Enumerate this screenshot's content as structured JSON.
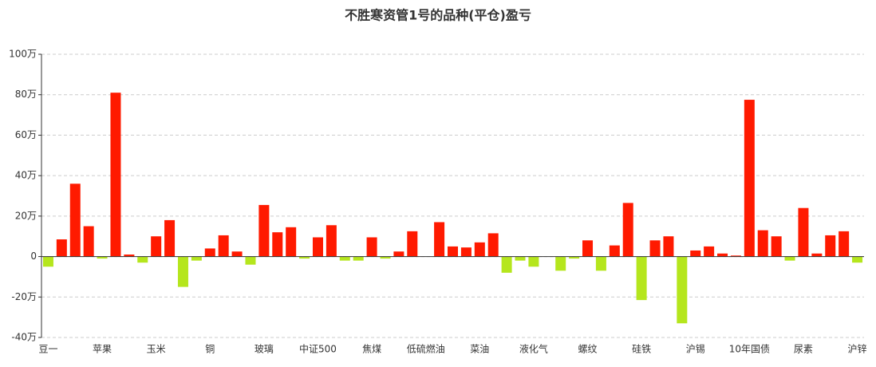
{
  "chart_data": {
    "type": "bar",
    "title": "不胜寒资管1号的品种(平仓)盈亏",
    "categories": [
      "豆一",
      null,
      null,
      null,
      "苹果",
      null,
      null,
      null,
      "玉米",
      null,
      null,
      null,
      "铜",
      null,
      null,
      null,
      "玻璃",
      null,
      null,
      null,
      "中证500",
      null,
      null,
      null,
      "焦煤",
      null,
      null,
      null,
      "低硫燃油",
      null,
      null,
      null,
      "菜油",
      null,
      null,
      null,
      "液化气",
      null,
      null,
      null,
      "螺纹",
      null,
      null,
      null,
      "硅铁",
      null,
      null,
      null,
      "沪锡",
      null,
      null,
      null,
      "10年国债",
      null,
      null,
      null,
      "尿素",
      null,
      null,
      null,
      "沪锌"
    ],
    "values": [
      -5,
      8.5,
      36,
      15,
      -1,
      81,
      1,
      -3,
      10,
      18,
      -15,
      -2,
      4,
      10.5,
      2.5,
      -4,
      25.5,
      12,
      14.5,
      -1,
      9.5,
      15.5,
      -2,
      -2,
      9.5,
      -1,
      2.5,
      12.5,
      0,
      17,
      5,
      4.5,
      7,
      11.5,
      -8,
      -2,
      -5,
      0,
      -7,
      -1,
      8,
      -7,
      5.5,
      26.5,
      -21.5,
      8,
      10,
      -33,
      3,
      5,
      1.5,
      0.5,
      77.5,
      13,
      10,
      -2,
      24,
      1.5,
      10.5,
      12.5,
      -3
    ],
    "positive_color": "#ff1a00",
    "negative_color": "#b5e61d",
    "ylim": [
      -40,
      100
    ],
    "yticks": [
      {
        "value": -40,
        "label": "-40万"
      },
      {
        "value": -20,
        "label": "-20万"
      },
      0,
      {
        "value": 20,
        "label": "20万"
      },
      {
        "value": 40,
        "label": "40万"
      },
      {
        "value": 60,
        "label": "60万"
      },
      {
        "value": 80,
        "label": "80万"
      },
      {
        "value": 100,
        "label": "100万"
      }
    ],
    "grid": true
  }
}
